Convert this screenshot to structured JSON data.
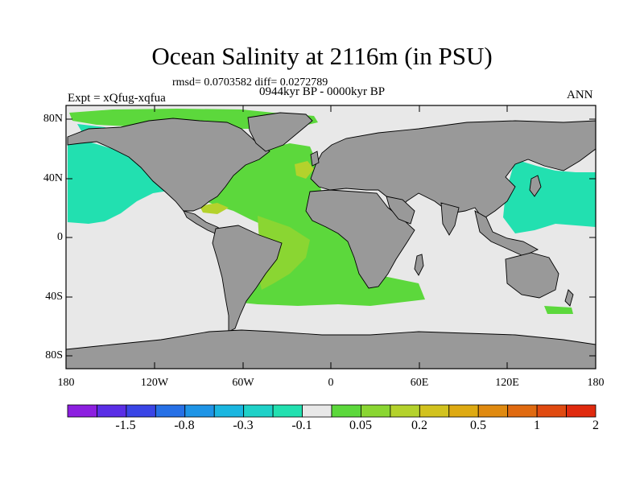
{
  "title": "Ocean Salinity at 2116m (in PSU)",
  "stats_line": "rmsd= 0.0703582 diff= 0.0272789",
  "period": "0944kyr BP - 0000kyr BP",
  "experiment": "Expt = xQfug-xqfua",
  "season": "ANN",
  "lat_labels": [
    "80N",
    "40N",
    "0",
    "40S",
    "80S"
  ],
  "lon_labels": [
    "180",
    "120W",
    "60W",
    "0",
    "60E",
    "120E",
    "180"
  ],
  "colorbar": {
    "colors": [
      "#8c1fe0",
      "#5a2ee6",
      "#3a45e6",
      "#2670e6",
      "#1e94e6",
      "#1ab6e0",
      "#1fd1c8",
      "#22e0b0",
      "#e8e8e8",
      "#5cd83c",
      "#8ad632",
      "#b4d22c",
      "#d2c21e",
      "#deaa12",
      "#e08a10",
      "#e06a10",
      "#e04a10",
      "#e02a0e"
    ],
    "labels": [
      "-1.5",
      "-0.8",
      "-0.3",
      "-0.1",
      "0.05",
      "0.2",
      "0.5",
      "1",
      "2"
    ]
  },
  "colors": {
    "land": "#999999",
    "ocean_neutral": "#e8e8e8",
    "green": "#5cd83c",
    "light_green": "#8ad632",
    "yellow_green": "#b4d22c",
    "yellow": "#d2c21e",
    "teal": "#22e0b0"
  }
}
